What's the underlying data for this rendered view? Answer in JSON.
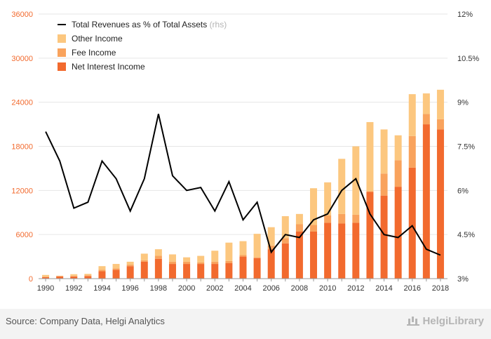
{
  "chart_data": {
    "type": "bar",
    "stacked": true,
    "categories": [
      "1990",
      "1991",
      "1992",
      "1993",
      "1994",
      "1995",
      "1996",
      "1997",
      "1998",
      "1999",
      "2000",
      "2001",
      "2002",
      "2003",
      "2004",
      "2005",
      "2006",
      "2007",
      "2008",
      "2009",
      "2010",
      "2011",
      "2012",
      "2013",
      "2014",
      "2015",
      "2016",
      "2017",
      "2018"
    ],
    "x_tick_labels": [
      "1990",
      "1992",
      "1994",
      "1996",
      "1998",
      "2000",
      "2002",
      "2004",
      "2006",
      "2008",
      "2010",
      "2012",
      "2014",
      "2016",
      "2018"
    ],
    "series": [
      {
        "name": "Net Interest Income",
        "color": "#f26a2e",
        "values": [
          200,
          300,
          300,
          350,
          1000,
          1200,
          1700,
          2300,
          2700,
          2000,
          2000,
          2000,
          2000,
          2100,
          3000,
          2800,
          4000,
          4800,
          6400,
          6400,
          7600,
          7500,
          7600,
          11800,
          11300,
          12500,
          15100,
          21000,
          20300
        ]
      },
      {
        "name": "Fee Income",
        "color": "#f9a35d",
        "values": [
          50,
          50,
          50,
          100,
          200,
          200,
          200,
          200,
          400,
          300,
          300,
          200,
          300,
          300,
          200,
          100,
          500,
          700,
          1000,
          900,
          1000,
          1300,
          1100,
          100,
          3000,
          3600,
          4300,
          1400,
          1400
        ]
      },
      {
        "name": "Other Income",
        "color": "#fcc77f",
        "values": [
          250,
          50,
          250,
          200,
          500,
          600,
          400,
          900,
          900,
          1000,
          600,
          900,
          1500,
          2500,
          1900,
          3200,
          2500,
          3000,
          1400,
          5000,
          4500,
          7500,
          9300,
          9400,
          6000,
          3400,
          5700,
          2800,
          4000
        ]
      },
      {
        "name": "Total Revenues as % of Total Assets",
        "type": "line",
        "axis": "right",
        "color": "#000000",
        "values": [
          8.0,
          7.0,
          5.4,
          5.6,
          7.0,
          6.4,
          5.3,
          6.4,
          8.6,
          6.5,
          6.0,
          6.1,
          5.3,
          6.3,
          5.0,
          5.6,
          3.9,
          4.5,
          4.4,
          5.0,
          5.2,
          6.0,
          6.4,
          5.2,
          4.5,
          4.4,
          4.8,
          4.0,
          3.8
        ]
      }
    ],
    "y_left": {
      "ylim": [
        0,
        36000
      ],
      "ticks": [
        0,
        6000,
        12000,
        18000,
        24000,
        30000,
        36000
      ],
      "tick_labels": [
        "0",
        "6000",
        "12000",
        "18000",
        "24000",
        "30000",
        "36000"
      ],
      "color": "#f26a2e"
    },
    "y_right": {
      "ylim": [
        3,
        12
      ],
      "ticks": [
        3,
        4.5,
        6,
        7.5,
        9,
        10.5,
        12
      ],
      "tick_labels": [
        "3%",
        "4.5%",
        "6%",
        "7.5%",
        "9%",
        "10.5%",
        "12%"
      ],
      "color": "#333333"
    },
    "legend": {
      "position": "top-left",
      "line_label": "Total Revenues as % of Total Assets",
      "line_suffix": "(rhs)",
      "bar_labels": [
        "Other Income",
        "Fee Income",
        "Net Interest Income"
      ]
    },
    "grid": "horizontal"
  },
  "footer": {
    "source": "Source: Company Data, Helgi Analytics",
    "brand": "HelgiLibrary"
  }
}
